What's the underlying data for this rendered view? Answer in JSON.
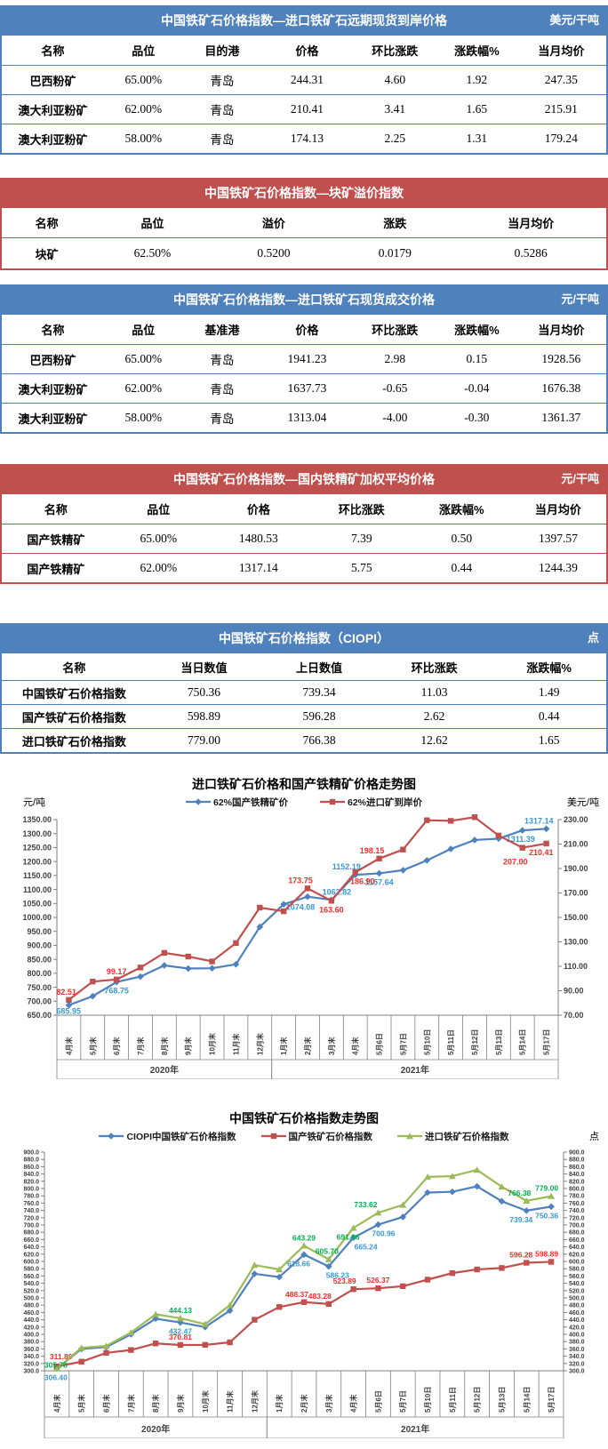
{
  "tables": [
    {
      "title": "中国铁矿石价格指数—进口铁矿石远期现货到岸价格",
      "unit": "美元/干吨",
      "theme": "blue",
      "columns": [
        "名称",
        "品位",
        "目的港",
        "价格",
        "环比涨跌",
        "涨跌幅%",
        "当月均价"
      ],
      "rows": [
        [
          "巴西粉矿",
          "65.00%",
          "青岛",
          "244.31",
          "4.60",
          "1.92",
          "247.35"
        ],
        [
          "澳大利亚粉矿",
          "62.00%",
          "青岛",
          "210.41",
          "3.41",
          "1.65",
          "215.91"
        ],
        [
          "澳大利亚粉矿",
          "58.00%",
          "青岛",
          "174.13",
          "2.25",
          "1.31",
          "179.24"
        ]
      ]
    },
    {
      "title": "中国铁矿石价格指数—块矿溢价指数",
      "unit": "",
      "theme": "red",
      "columns": [
        "名称",
        "品位",
        "溢价",
        "涨跌",
        "当月均价"
      ],
      "rows": [
        [
          "块矿",
          "62.50%",
          "0.5200",
          "0.0179",
          "0.5286"
        ]
      ]
    },
    {
      "title": "中国铁矿石价格指数—进口铁矿石现货成交价格",
      "unit": "元/干吨",
      "theme": "blue",
      "columns": [
        "名称",
        "品位",
        "基准港",
        "价格",
        "环比涨跌",
        "涨跌幅%",
        "当月均价"
      ],
      "rows": [
        [
          "巴西粉矿",
          "65.00%",
          "青岛",
          "1941.23",
          "2.98",
          "0.15",
          "1928.56"
        ],
        [
          "澳大利亚粉矿",
          "62.00%",
          "青岛",
          "1637.73",
          "-0.65",
          "-0.04",
          "1676.38"
        ],
        [
          "澳大利亚粉矿",
          "58.00%",
          "青岛",
          "1313.04",
          "-4.00",
          "-0.30",
          "1361.37"
        ]
      ]
    },
    {
      "title": "中国铁矿石价格指数—国内铁精矿加权平均价格",
      "unit": "元/干吨",
      "theme": "red",
      "columns": [
        "名称",
        "品位",
        "价格",
        "环比涨跌",
        "涨跌幅%",
        "当月均价"
      ],
      "rows": [
        [
          "国产铁精矿",
          "65.00%",
          "1480.53",
          "7.39",
          "0.50",
          "1397.57"
        ],
        [
          "国产铁精矿",
          "62.00%",
          "1317.14",
          "5.75",
          "0.44",
          "1244.39"
        ]
      ]
    },
    {
      "title": "中国铁矿石价格指数（CIOPI）",
      "unit": "点",
      "theme": "blue",
      "columns": [
        "名称",
        "当日数值",
        "上日数值",
        "环比涨跌",
        "涨跌幅%"
      ],
      "rows": [
        [
          "中国铁矿石价格指数",
          "750.36",
          "739.34",
          "11.03",
          "1.49"
        ],
        [
          "国产铁矿石价格指数",
          "598.89",
          "596.28",
          "2.62",
          "0.44"
        ],
        [
          "进口铁矿石价格指数",
          "779.00",
          "766.38",
          "12.62",
          "1.65"
        ]
      ]
    }
  ],
  "chart_data": [
    {
      "type": "line",
      "title": "进口铁矿石价格和国产铁精矿价格走势图",
      "unit_left": "元/吨",
      "unit_right": "美元/吨",
      "x": [
        "4月末",
        "5月末",
        "6月末",
        "7月末",
        "8月末",
        "9月末",
        "10月末",
        "11月末",
        "12月末",
        "1月末",
        "2月末",
        "3月末",
        "4月末",
        "5月6日",
        "5月7日",
        "5月10日",
        "5月11日",
        "5月12日",
        "5月13日",
        "5月14日",
        "5月17日"
      ],
      "x_groups": [
        {
          "label": "2020年",
          "count": 9
        },
        {
          "label": "2021年",
          "count": 12
        }
      ],
      "y_left": {
        "min": 650,
        "max": 1350,
        "step": 50,
        "fmt": 2
      },
      "y_right": {
        "min": 70,
        "max": 230,
        "step": 20,
        "fmt": 2
      },
      "legend_position": "top",
      "grid": false,
      "series": [
        {
          "name": "62%国产铁精矿价",
          "color": "#4f81bd",
          "label_color": "#3b97d3",
          "marker": "diamond",
          "axis": "left",
          "values": [
            685.95,
            718,
            768.75,
            788,
            828,
            817,
            818,
            832,
            966,
            1047,
            1074.08,
            1062.82,
            1152.19,
            1157.64,
            1169,
            1204,
            1245,
            1277,
            1282,
            1311.39,
            1317.14
          ],
          "labels": [
            {
              "i": 0,
              "t": "685.95",
              "p": "b",
              "o": -3
            },
            {
              "i": 2,
              "t": "768.75",
              "p": "b"
            },
            {
              "i": 10,
              "t": "1074.08",
              "p": "b",
              "o": 2,
              "dx": -8
            },
            {
              "i": 11,
              "t": "1062.82",
              "p": "a",
              "dx": 6
            },
            {
              "i": 12,
              "t": "1152.19",
              "p": "a",
              "dx": -10
            },
            {
              "i": 13,
              "t": "1157.64",
              "p": "b"
            },
            {
              "i": 19,
              "t": "1311.39",
              "p": "b",
              "dx": -2
            },
            {
              "i": 20,
              "t": "1317.14",
              "p": "a"
            }
          ]
        },
        {
          "name": "62%进口矿到岸价",
          "color": "#c0504d",
          "label_color": "#ff2a2a",
          "marker": "square",
          "axis": "right",
          "values": [
            82.51,
            97.5,
            99.17,
            109,
            121,
            118,
            114,
            129,
            158,
            155,
            173.75,
            163.6,
            186.9,
            198.15,
            205.5,
            229.5,
            229,
            232,
            217,
            207,
            210.41
          ],
          "labels": [
            {
              "i": 0,
              "t": "82.51",
              "p": "a"
            },
            {
              "i": 2,
              "t": "99.17",
              "p": "a"
            },
            {
              "i": 10,
              "t": "173.75",
              "p": "a",
              "dx": -8
            },
            {
              "i": 11,
              "t": "163.60",
              "p": "b"
            },
            {
              "i": 12,
              "t": "186.90",
              "p": "b",
              "dx": 8
            },
            {
              "i": 13,
              "t": "198.15",
              "p": "a",
              "dx": -8
            },
            {
              "i": 19,
              "t": "207.00",
              "p": "b",
              "o": 6,
              "dx": -8
            },
            {
              "i": 20,
              "t": "210.41",
              "p": "b"
            }
          ]
        }
      ]
    },
    {
      "type": "line",
      "title": "中国铁矿石价格指数走势图",
      "unit_left": "",
      "unit_right": "点",
      "x": [
        "4月末",
        "5月末",
        "6月末",
        "7月末",
        "8月末",
        "9月末",
        "10月末",
        "11月末",
        "12月末",
        "1月末",
        "2月末",
        "3月末",
        "4月末",
        "5月6日",
        "5月7日",
        "5月10日",
        "5月11日",
        "5月12日",
        "5月13日",
        "5月14日",
        "5月17日"
      ],
      "x_groups": [
        {
          "label": "2020年",
          "count": 9
        },
        {
          "label": "2021年",
          "count": 12
        }
      ],
      "y_left": {
        "min": 300,
        "max": 900,
        "step": 20,
        "fmt": 1
      },
      "y_right": {
        "min": 300,
        "max": 900,
        "step": 20,
        "fmt": 1
      },
      "legend_position": "top",
      "grid": false,
      "series": [
        {
          "name": "CIOPI中国铁矿石价格指数",
          "color": "#4f81bd",
          "label_color": "#3b97d3",
          "marker": "diamond",
          "axis": "left",
          "values": [
            306.4,
            360,
            365,
            400,
            443,
            432.47,
            420,
            465,
            566,
            557,
            618.66,
            586.23,
            665.24,
            700.96,
            722,
            789,
            791,
            806,
            765,
            739.34,
            750.36
          ],
          "labels": [
            {
              "i": 0,
              "t": "306.40",
              "p": "b"
            },
            {
              "i": 5,
              "t": "432.47",
              "p": "b"
            },
            {
              "i": 10,
              "t": "618.66",
              "p": "b",
              "dx": -6
            },
            {
              "i": 11,
              "t": "586.23",
              "p": "b",
              "dx": 10
            },
            {
              "i": 12,
              "t": "665.24",
              "p": "b",
              "dx": 14
            },
            {
              "i": 13,
              "t": "700.96",
              "p": "b",
              "dx": 6
            },
            {
              "i": 19,
              "t": "739.34",
              "p": "b",
              "dx": -6
            },
            {
              "i": 20,
              "t": "750.36",
              "p": "b"
            }
          ]
        },
        {
          "name": "国产铁矿石价格指数",
          "color": "#c0504d",
          "label_color": "#ff2a2a",
          "marker": "square",
          "axis": "left",
          "values": [
            311.89,
            325,
            349,
            357,
            375,
            370.81,
            371,
            378,
            440,
            475,
            488.37,
            483.28,
            523.89,
            526.37,
            532,
            550,
            568,
            578,
            582,
            596.28,
            598.89
          ],
          "labels": [
            {
              "i": 0,
              "t": "311.89",
              "p": "a",
              "o": -2,
              "dx": 6
            },
            {
              "i": 5,
              "t": "370.81",
              "p": "a"
            },
            {
              "i": 10,
              "t": "488.37",
              "p": "a",
              "dx": -8
            },
            {
              "i": 11,
              "t": "483.28",
              "p": "a",
              "dx": -10
            },
            {
              "i": 12,
              "t": "523.89",
              "p": "a",
              "dx": -10
            },
            {
              "i": 13,
              "t": "526.37",
              "p": "a"
            },
            {
              "i": 19,
              "t": "596.28",
              "p": "a",
              "dx": -6
            },
            {
              "i": 20,
              "t": "598.89",
              "p": "a"
            }
          ]
        },
        {
          "name": "进口铁矿石价格指数",
          "color": "#9bbb59",
          "label_color": "#00b050",
          "marker": "triangle",
          "axis": "left",
          "values": [
            305.78,
            363,
            368,
            405,
            455,
            444.13,
            428,
            480,
            590,
            578,
            643.29,
            605.7,
            691.96,
            733.62,
            755,
            832,
            834,
            851,
            805,
            766.38,
            779
          ],
          "labels": [
            {
              "i": 0,
              "t": "305.78",
              "p": "a",
              "o": 5
            },
            {
              "i": 5,
              "t": "444.13",
              "p": "a"
            },
            {
              "i": 10,
              "t": "643.29",
              "p": "a"
            },
            {
              "i": 11,
              "t": "605.70",
              "p": "a",
              "dx": -2
            },
            {
              "i": 12,
              "t": "691.96",
              "p": "b",
              "dx": -6
            },
            {
              "i": 13,
              "t": "733.62",
              "p": "a",
              "dx": -14
            },
            {
              "i": 19,
              "t": "766.38",
              "p": "a",
              "dx": -8
            },
            {
              "i": 20,
              "t": "779.00",
              "p": "a"
            }
          ]
        }
      ]
    }
  ]
}
